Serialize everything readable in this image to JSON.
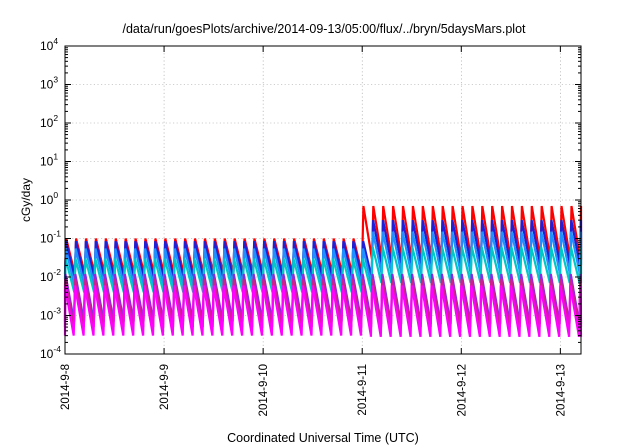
{
  "chart_data": {
    "type": "line",
    "title": "/data/run/goesPlots/archive/2014-09-13/05:00/flux/../bryn/5daysMars.plot",
    "xlabel": "Coordinated Universal Time (UTC)",
    "ylabel": "cGy/day",
    "yscale": "log",
    "ylim": [
      0.0001,
      10000
    ],
    "yticks": [
      {
        "base": "10",
        "exp": "4"
      },
      {
        "base": "10",
        "exp": "3"
      },
      {
        "base": "10",
        "exp": "2"
      },
      {
        "base": "10",
        "exp": "1"
      },
      {
        "base": "10",
        "exp": "0"
      },
      {
        "base": "10",
        "exp": "-1"
      },
      {
        "base": "10",
        "exp": "-2"
      },
      {
        "base": "10",
        "exp": "-3"
      },
      {
        "base": "10",
        "exp": "-4"
      }
    ],
    "xlim": [
      "2014-09-08 00:00",
      "2014-09-13 05:00"
    ],
    "xticks": [
      "2014-9-8",
      "2014-9-9",
      "2014-9-10",
      "2014-9-11",
      "2014-9-12",
      "2014-9-13"
    ],
    "grid": true,
    "legend": "none",
    "sawtooth": {
      "period_hours": 2.4,
      "step_change_date": "2014-09-11 00:00",
      "series": [
        {
          "color": "#ff0000",
          "peak_before": 0.1,
          "trough_before": 0.012,
          "peak_after": 0.7,
          "trough_after": 0.028
        },
        {
          "color": "#1f1fd8",
          "peak_before": 0.085,
          "trough_before": 0.009,
          "peak_after": 0.3,
          "trough_after": 0.02
        },
        {
          "color": "#1e90ff",
          "peak_before": 0.055,
          "trough_before": 0.006,
          "peak_after": 0.15,
          "trough_after": 0.012
        },
        {
          "color": "#00c8c8",
          "peak_before": 0.03,
          "trough_before": 0.004,
          "peak_after": 0.06,
          "trough_after": 0.007
        },
        {
          "color": "#8a2be2",
          "peak_before": 0.012,
          "trough_before": 0.0007,
          "peak_after": 0.012,
          "trough_after": 0.0006
        },
        {
          "color": "#d02090",
          "peak_before": 0.009,
          "trough_before": 0.0005,
          "peak_after": 0.009,
          "trough_after": 0.0005
        },
        {
          "color": "#ff00ff",
          "peak_before": 0.006,
          "trough_before": 0.0003,
          "peak_after": 0.006,
          "trough_after": 0.00028
        }
      ]
    }
  }
}
